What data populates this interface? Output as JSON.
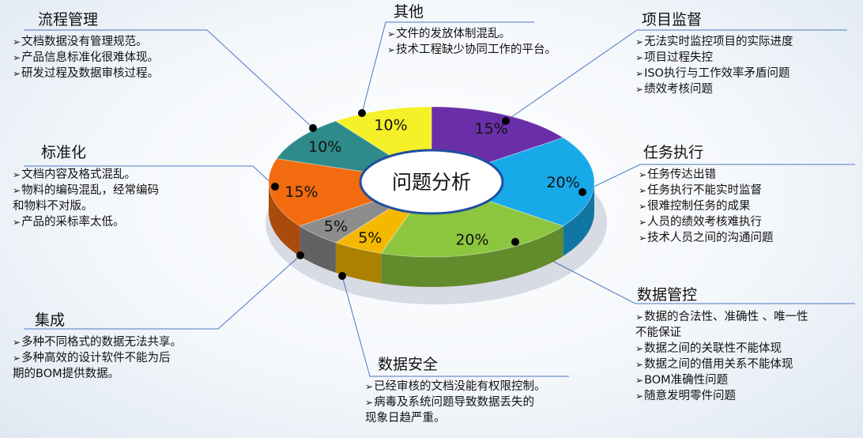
{
  "chart_data": {
    "type": "pie",
    "title": "问题分析",
    "slices": [
      {
        "label": "项目监督",
        "value": 15,
        "display": "15%",
        "color": "#6a2fa8"
      },
      {
        "label": "任务执行",
        "value": 20,
        "display": "20%",
        "color": "#18a9e8"
      },
      {
        "label": "数据管控",
        "value": 20,
        "display": "20%",
        "color": "#8cc63f"
      },
      {
        "label": "数据安全",
        "value": 5,
        "display": "5%",
        "color": "#f5b800"
      },
      {
        "label": "集成",
        "value": 5,
        "display": "5%",
        "color": "#8c8c8c"
      },
      {
        "label": "标准化",
        "value": 15,
        "display": "15%",
        "color": "#f26b0f"
      },
      {
        "label": "流程管理",
        "value": 10,
        "display": "10%",
        "color": "#2f8a8a"
      },
      {
        "label": "其他",
        "value": 10,
        "display": "10%",
        "color": "#f5f028"
      }
    ]
  },
  "groups": {
    "liucheng": {
      "title": "流程管理",
      "items": [
        "文档数据没有管理规范。",
        "产品信息标准化很难体现。",
        "研发过程及数据审核过程。"
      ]
    },
    "qita": {
      "title": "其他",
      "items": [
        "文件的发放体制混乱。",
        "技术工程缺少协同工作的平台。"
      ]
    },
    "xiangmu": {
      "title": "项目监督",
      "items": [
        "无法实时监控项目的实际进度",
        "项目过程失控",
        "ISO执行与工作效率矛盾问题",
        "绩效考核问题"
      ]
    },
    "biaozhun": {
      "title": "标准化",
      "items": [
        "文档内容及格式混乱。",
        "物料的编码混乱，经常编码\n和物料不对版。",
        "产品的采标率太低。"
      ]
    },
    "renwu": {
      "title": "任务执行",
      "items": [
        "任务传达出错",
        "任务执行不能实时监督",
        "很难控制任务的成果",
        "人员的绩效考核难执行",
        "技术人员之间的沟通问题"
      ]
    },
    "jicheng": {
      "title": "集成",
      "items": [
        "多种不同格式的数据无法共享。",
        "多种高效的设计软件不能为后\n期的BOM提供数据。"
      ]
    },
    "anquan": {
      "title": "数据安全",
      "items": [
        "已经审核的文档没能有权限控制。",
        "病毒及系统问题导致数据丢失的\n现象日趋严重。"
      ]
    },
    "guankong": {
      "title": "数据管控",
      "items": [
        "数据的合法性、准确性 、唯一性\n不能保证",
        "数据之间的关联性不能体现",
        "数据之间的借用关系不能体现",
        "BOM准确性问题",
        "随意发明零件问题"
      ]
    }
  }
}
